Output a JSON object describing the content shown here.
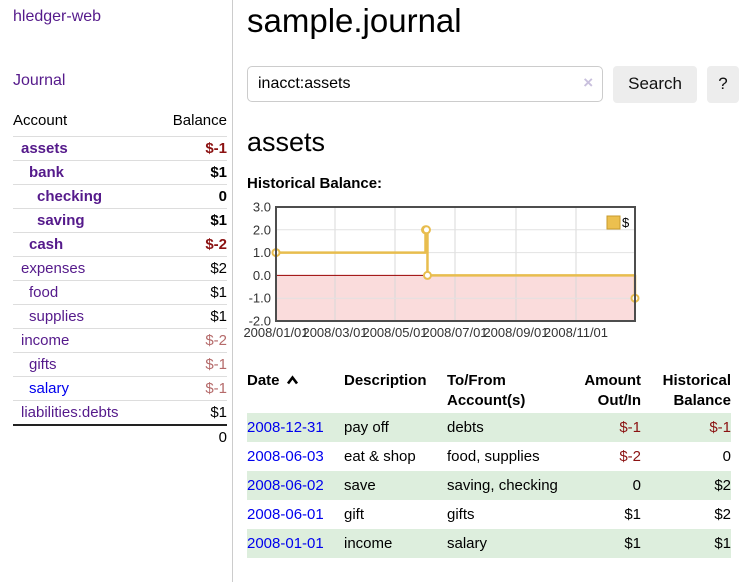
{
  "colors": {
    "link_purple": "#551a8b",
    "link_blue": "#0000ee",
    "negative_strong": "#8b1212",
    "negative_light": "#b56a6a",
    "row_stripe_green": "#ddeedd",
    "series_gold": "#e8bd4e",
    "negative_region_pink": "#fadcdc",
    "zero_line_red": "#990000",
    "chart_border": "#4d4d4d"
  },
  "sidebar": {
    "brand": "hledger-web",
    "nav_journal": "Journal",
    "accounts": {
      "headers": {
        "account": "Account",
        "balance": "Balance"
      },
      "rows": [
        {
          "label": "assets",
          "depth": 1,
          "bold": true,
          "balance": "$-1",
          "neg": "strong"
        },
        {
          "label": "bank",
          "depth": 2,
          "bold": true,
          "balance": "$1"
        },
        {
          "label": "checking",
          "depth": 3,
          "bold": true,
          "balance": "0"
        },
        {
          "label": "saving",
          "depth": 3,
          "bold": true,
          "balance": "$1"
        },
        {
          "label": "cash",
          "depth": 2,
          "bold": true,
          "balance": "$-2",
          "neg": "strong"
        },
        {
          "label": "expenses",
          "depth": 1,
          "bold": false,
          "balance": "$2"
        },
        {
          "label": "food",
          "depth": 2,
          "bold": false,
          "balance": "$1"
        },
        {
          "label": "supplies",
          "depth": 2,
          "bold": false,
          "balance": "$1"
        },
        {
          "label": "income",
          "depth": 1,
          "bold": false,
          "balance": "$-2",
          "neg": "light"
        },
        {
          "label": "gifts",
          "depth": 2,
          "bold": false,
          "balance": "$-1",
          "neg": "light"
        },
        {
          "label": "salary",
          "depth": 2,
          "bold": false,
          "balance": "$-1",
          "neg": "light",
          "link": "blue"
        },
        {
          "label": "liabilities:debts",
          "depth": 1,
          "bold": false,
          "balance": "$1"
        }
      ],
      "total": "0"
    }
  },
  "main": {
    "title": "sample.journal",
    "search": {
      "value": "inacct:assets",
      "clear_label": "×",
      "button_label": "Search",
      "help_label": "?"
    },
    "account_heading": "assets",
    "chart_label": "Historical Balance:"
  },
  "chart_data": {
    "type": "line",
    "title": "Historical Balance",
    "step": true,
    "series": [
      {
        "name": "$",
        "color": "#e8bd4e",
        "points": [
          [
            "2008-01-01",
            1
          ],
          [
            "2008-06-01",
            2
          ],
          [
            "2008-06-02",
            2
          ],
          [
            "2008-06-03",
            0
          ],
          [
            "2008-12-31",
            -1
          ]
        ]
      }
    ],
    "x_domain": [
      "2008-01-01",
      "2008-12-31"
    ],
    "x_ticks": [
      "2008/01/01",
      "2008/03/01",
      "2008/05/01",
      "2008/07/01",
      "2008/09/01",
      "2008/11/01"
    ],
    "y_ticks": [
      {
        "v": 3,
        "label": "3.0"
      },
      {
        "v": 2,
        "label": "2.0"
      },
      {
        "v": 1,
        "label": "1.0"
      },
      {
        "v": 0,
        "label": "0.0"
      },
      {
        "v": -1,
        "label": "-1.0"
      },
      {
        "v": -2,
        "label": "-2.0"
      }
    ],
    "ylim": [
      -2,
      3
    ],
    "grid": true,
    "legend": {
      "label": "$",
      "position": "top-right",
      "swatch_color": "#ecc04f",
      "swatch_border": "#c79a2c"
    }
  },
  "register_table": {
    "headers": {
      "date": "Date",
      "description": "Description",
      "accounts": "To/From Account(s)",
      "amount": "Amount Out/In",
      "balance": "Historical Balance"
    },
    "rows": [
      {
        "date": "2008-12-31",
        "description": "pay off",
        "accounts": "debts",
        "amount": "$-1",
        "amount_neg": true,
        "balance": "$-1",
        "balance_neg": true
      },
      {
        "date": "2008-06-03",
        "description": "eat & shop",
        "accounts": "food, supplies",
        "amount": "$-2",
        "amount_neg": true,
        "balance": "0",
        "balance_neg": false
      },
      {
        "date": "2008-06-02",
        "description": "save",
        "accounts": "saving, checking",
        "amount": "0",
        "amount_neg": false,
        "balance": "$2",
        "balance_neg": false
      },
      {
        "date": "2008-06-01",
        "description": "gift",
        "accounts": "gifts",
        "amount": "$1",
        "amount_neg": false,
        "balance": "$2",
        "balance_neg": false
      },
      {
        "date": "2008-01-01",
        "description": "income",
        "accounts": "salary",
        "amount": "$1",
        "amount_neg": false,
        "balance": "$1",
        "balance_neg": false
      }
    ]
  }
}
